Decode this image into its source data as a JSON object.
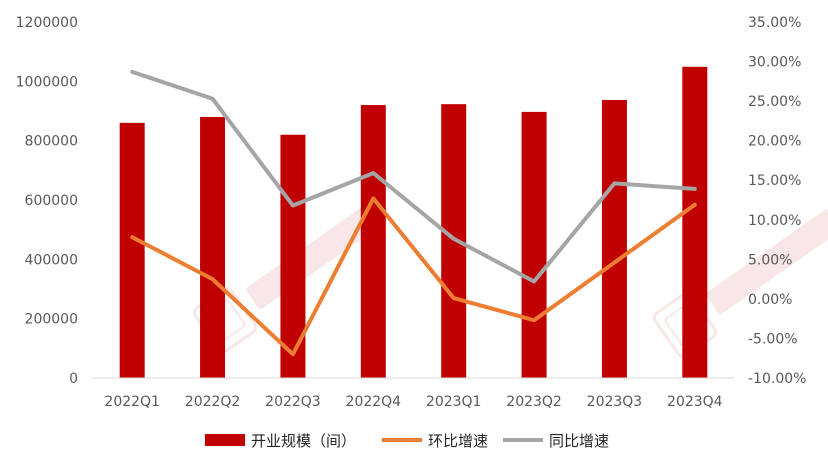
{
  "chart_data": {
    "type": "bar",
    "title": "",
    "categories": [
      "2022Q1",
      "2022Q2",
      "2022Q3",
      "2022Q4",
      "2023Q1",
      "2023Q2",
      "2023Q3",
      "2023Q4"
    ],
    "left_axis": {
      "ylim": [
        0,
        1200000
      ],
      "ticks": [
        "0",
        "200000",
        "400000",
        "600000",
        "800000",
        "1000000",
        "1200000"
      ]
    },
    "right_axis": {
      "ylim": [
        -10,
        35
      ],
      "ticks": [
        "-10.00%",
        "-5.00%",
        "0.00%",
        "5.00%",
        "10.00%",
        "15.00%",
        "20.00%",
        "25.00%",
        "30.00%",
        "35.00%"
      ]
    },
    "series": [
      {
        "name": "开业规模（间）",
        "type": "bar",
        "axis": "left",
        "color": "#C00000",
        "values": [
          860000,
          880000,
          820000,
          920000,
          923000,
          897000,
          937000,
          1049000
        ]
      },
      {
        "name": "环比增速",
        "type": "line",
        "axis": "right",
        "color": "#ED7D31",
        "values": [
          7.8,
          2.5,
          -7.0,
          12.7,
          0.1,
          -2.7,
          4.6,
          11.9
        ]
      },
      {
        "name": "同比增速",
        "type": "line",
        "axis": "right",
        "color": "#A5A5A5",
        "values": [
          28.7,
          25.3,
          11.8,
          15.9,
          7.6,
          2.2,
          14.6,
          13.9
        ]
      }
    ],
    "legend_position": "bottom",
    "grid": false
  }
}
